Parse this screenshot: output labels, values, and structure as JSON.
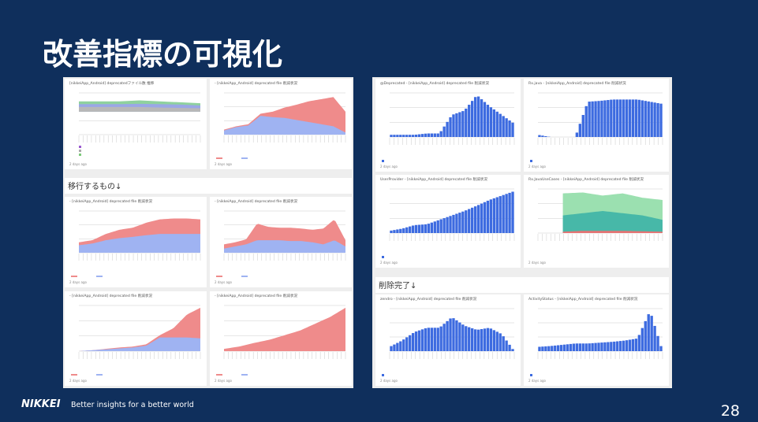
{
  "slide": {
    "title": "改善指標の可視化",
    "page_number": "28"
  },
  "footer": {
    "logo": "NIKKEI",
    "tagline": "Better insights for a better world"
  },
  "left_panel": {
    "cards": [
      {
        "title": "[nikkeiApp_Android] deprecatedファイル数 推移",
        "updated": "2 days ago"
      },
      {
        "title": "- [nikkeiApp_Android] deprecated file 削減状況",
        "updated": "2 days ago"
      }
    ],
    "section": "移行するもの↓",
    "section_cards": [
      {
        "title": "- [nikkeiApp_Android] deprecated file 削減状況",
        "updated": "2 days ago"
      },
      {
        "title": "- [nikkeiApp_Android] deprecated file 削減状況",
        "updated": "2 days ago"
      },
      {
        "title": "- [nikkeiApp_Android] deprecated file 削減状況",
        "updated": "2 days ago"
      },
      {
        "title": "- [nikkeiApp_Android] deprecated file 削減状況",
        "updated": "2 days ago"
      }
    ]
  },
  "right_panel": {
    "cards": [
      {
        "title": "@Deprecated - [nikkeiApp_Android] deprecated file 削減状況",
        "updated": "2 days ago"
      },
      {
        "title": "Rx.java - [nikkeiApp_Android] deprecated file 削減状況",
        "updated": "2 days ago"
      },
      {
        "title": "UserProvider - [nikkeiApp_Android] deprecated file 削減状況",
        "updated": "2 days ago"
      },
      {
        "title": "Rx.JavaUseCases - [nikkeiApp_Android] deprecated file 削減状況",
        "updated": "2 days ago"
      }
    ],
    "section": "削除完了↓",
    "section_cards": [
      {
        "title": "zendro - [nikkeiApp_Android] deprecated file 削減状況",
        "updated": "2 days ago"
      },
      {
        "title": "ActivityStatus - [nikkeiApp_Android] deprecated file 削減状況",
        "updated": "2 days ago"
      }
    ]
  }
}
